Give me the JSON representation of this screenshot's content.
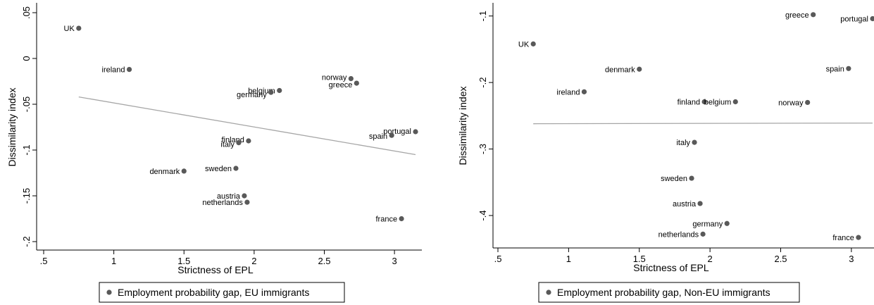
{
  "chart_data": [
    {
      "type": "scatter",
      "xlabel": "Strictness of EPL",
      "ylabel": "Dissimilarity index",
      "xlim": [
        0.5,
        3.15
      ],
      "ylim": [
        -0.2,
        0.05
      ],
      "x_ticks": [
        {
          "value": 0.5,
          "label": ".5"
        },
        {
          "value": 1,
          "label": "1"
        },
        {
          "value": 1.5,
          "label": "1.5"
        },
        {
          "value": 2,
          "label": "2"
        },
        {
          "value": 2.5,
          "label": "2.5"
        },
        {
          "value": 3,
          "label": "3"
        }
      ],
      "y_ticks": [
        {
          "value": 0.05,
          "label": ".05"
        },
        {
          "value": 0,
          "label": "0"
        },
        {
          "value": -0.05,
          "label": "-.05"
        },
        {
          "value": -0.1,
          "label": "-.1"
        },
        {
          "value": -0.15,
          "label": "-.15"
        },
        {
          "value": -0.2,
          "label": "-.2"
        }
      ],
      "legend": "Employment probability gap, EU immigrants",
      "marker_color": "#595959",
      "fit_color": "#a6a6a6",
      "fit_line": {
        "x": [
          0.75,
          3.15
        ],
        "y": [
          -0.042,
          -0.105
        ]
      },
      "points": [
        {
          "label": "UK",
          "x": 0.75,
          "y": 0.033
        },
        {
          "label": "ireland",
          "x": 1.11,
          "y": -0.012
        },
        {
          "label": "norway",
          "x": 2.69,
          "y": -0.022
        },
        {
          "label": "greece",
          "x": 2.73,
          "y": -0.027
        },
        {
          "label": "belgium",
          "x": 2.18,
          "y": -0.035
        },
        {
          "label": "germany",
          "x": 2.12,
          "y": -0.037
        },
        {
          "label": "portugal",
          "x": 3.15,
          "y": -0.08
        },
        {
          "label": "spain",
          "x": 2.98,
          "y": -0.084
        },
        {
          "label": "finland",
          "x": 1.96,
          "y": -0.09
        },
        {
          "label": "italy",
          "x": 1.89,
          "y": -0.092
        },
        {
          "label": "sweden",
          "x": 1.87,
          "y": -0.12
        },
        {
          "label": "denmark",
          "x": 1.5,
          "y": -0.123
        },
        {
          "label": "austria",
          "x": 1.93,
          "y": -0.15
        },
        {
          "label": "netherlands",
          "x": 1.95,
          "y": -0.157
        },
        {
          "label": "france",
          "x": 3.05,
          "y": -0.175
        }
      ]
    },
    {
      "type": "scatter",
      "xlabel": "Strictness of EPL",
      "ylabel": "Dissimilarity index",
      "xlim": [
        0.5,
        3.15
      ],
      "ylim": [
        -0.435,
        -0.095
      ],
      "x_ticks": [
        {
          "value": 0.5,
          "label": ".5"
        },
        {
          "value": 1,
          "label": "1"
        },
        {
          "value": 1.5,
          "label": "1.5"
        },
        {
          "value": 2,
          "label": "2"
        },
        {
          "value": 2.5,
          "label": "2.5"
        },
        {
          "value": 3,
          "label": "3"
        }
      ],
      "y_ticks": [
        {
          "value": -0.1,
          "label": "-.1"
        },
        {
          "value": -0.2,
          "label": "-.2"
        },
        {
          "value": -0.3,
          "label": "-.3"
        },
        {
          "value": -0.4,
          "label": "-.4"
        }
      ],
      "legend": "Employment probability gap, Non-EU immigrants",
      "marker_color": "#595959",
      "fit_color": "#a6a6a6",
      "fit_line": {
        "x": [
          0.75,
          3.15
        ],
        "y": [
          -0.262,
          -0.261
        ]
      },
      "points": [
        {
          "label": "greece",
          "x": 2.73,
          "y": -0.098
        },
        {
          "label": "portugal",
          "x": 3.15,
          "y": -0.104
        },
        {
          "label": "UK",
          "x": 0.75,
          "y": -0.142
        },
        {
          "label": "denmark",
          "x": 1.5,
          "y": -0.18
        },
        {
          "label": "spain",
          "x": 2.98,
          "y": -0.179
        },
        {
          "label": "ireland",
          "x": 1.11,
          "y": -0.214
        },
        {
          "label": "finland",
          "x": 1.96,
          "y": -0.229
        },
        {
          "label": "belgium",
          "x": 2.18,
          "y": -0.229
        },
        {
          "label": "norway",
          "x": 2.69,
          "y": -0.23
        },
        {
          "label": "italy",
          "x": 1.89,
          "y": -0.29
        },
        {
          "label": "sweden",
          "x": 1.87,
          "y": -0.344
        },
        {
          "label": "austria",
          "x": 1.93,
          "y": -0.382
        },
        {
          "label": "germany",
          "x": 2.12,
          "y": -0.412
        },
        {
          "label": "netherlands",
          "x": 1.95,
          "y": -0.428
        },
        {
          "label": "france",
          "x": 3.05,
          "y": -0.433
        }
      ]
    }
  ]
}
